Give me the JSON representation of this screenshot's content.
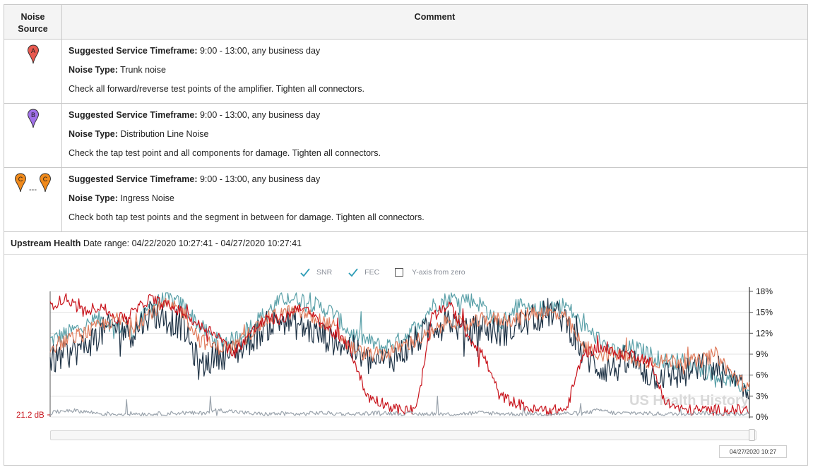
{
  "table": {
    "headers": {
      "source": "Noise Source",
      "comment": "Comment"
    },
    "rows": [
      {
        "pins": [
          {
            "letter": "A",
            "color": "#e8594f"
          }
        ],
        "separator": "",
        "timeframe_label": "Suggested Service Timeframe:",
        "timeframe_value": " 9:00 - 13:00, any business day",
        "type_label": "Noise Type:",
        "type_value": " Trunk noise",
        "instruction": "Check all forward/reverse test points of the amplifier. Tighten all connectors."
      },
      {
        "pins": [
          {
            "letter": "B",
            "color": "#a070e8"
          }
        ],
        "separator": "",
        "timeframe_label": "Suggested Service Timeframe:",
        "timeframe_value": " 9:00 - 13:00, any business day",
        "type_label": "Noise Type:",
        "type_value": " Distribution Line Noise",
        "instruction": "Check the tap test point and all components for damage. Tighten all connectors."
      },
      {
        "pins": [
          {
            "letter": "C",
            "color": "#f08a1c"
          },
          {
            "letter": "C",
            "color": "#f08a1c"
          }
        ],
        "separator": "---",
        "timeframe_label": "Suggested Service Timeframe:",
        "timeframe_value": " 9:00 - 13:00, any business day",
        "type_label": "Noise Type:",
        "type_value": " Ingress Noise",
        "instruction": "Check both tap test points and the segment in between for damage. Tighten all connectors."
      }
    ]
  },
  "upstream": {
    "title": "Upstream Health",
    "date_range": " Date range: 04/22/2020 10:27:41 - 04/27/2020 10:27:41",
    "legend": {
      "snr_label": "SNR",
      "fec_label": "FEC",
      "zero_label": "Y-axis from zero",
      "snr_checked": true,
      "fec_checked": true,
      "zero_checked": false,
      "check_color": "#2a9bb5"
    },
    "watermark": "US Health History",
    "left_marker": "21.2 dB",
    "scroll_date": "04/27/2020 10:27"
  },
  "chart_data": {
    "type": "line",
    "title": "",
    "xlabel": "",
    "ylabel": "",
    "x_range": [
      "04/22/2020 10:27:41",
      "04/27/2020 10:27:41"
    ],
    "ylim": [
      0,
      18
    ],
    "y_ticks": [
      "0%",
      "3%",
      "6%",
      "9%",
      "12%",
      "15%",
      "18%"
    ],
    "y_tick_values": [
      0,
      3,
      6,
      9,
      12,
      15,
      18
    ],
    "left_axis_label": "21.2 dB",
    "grid": true,
    "series": [
      {
        "color": "#5aa0a8",
        "level": [
          11,
          12,
          13,
          14,
          13,
          12,
          16,
          17,
          16,
          13,
          11,
          11,
          13,
          15,
          17,
          17,
          16,
          15,
          12,
          11,
          10,
          11,
          13,
          16,
          17,
          17,
          16,
          13,
          16,
          15,
          16,
          16,
          13,
          11,
          9,
          10,
          9,
          8,
          8,
          7,
          6,
          5,
          4
        ],
        "noise": 1.2
      },
      {
        "color": "#1f3346",
        "level": [
          8,
          9,
          10,
          12,
          13,
          12,
          15,
          14,
          13,
          7,
          9,
          9,
          11,
          13,
          14,
          13,
          12,
          11,
          10,
          8,
          8,
          9,
          11,
          13,
          14,
          12,
          13,
          12,
          13,
          14,
          15,
          14,
          9,
          7,
          7,
          8,
          6,
          6,
          6,
          7,
          7,
          5,
          3
        ],
        "noise": 2.2
      },
      {
        "color": "#e07c5c",
        "level": [
          10,
          11,
          12,
          13,
          14,
          13,
          15,
          16,
          15,
          11,
          10,
          10,
          12,
          14,
          15,
          15,
          14,
          13,
          10,
          9,
          9,
          10,
          11,
          12,
          14,
          13,
          14,
          14,
          14,
          15,
          15,
          14,
          10,
          9,
          9,
          8,
          8,
          8,
          8,
          8,
          9,
          6,
          4
        ],
        "noise": 1.1
      },
      {
        "color": "#c8141c",
        "level": [
          16,
          17,
          15,
          16,
          14,
          15,
          17,
          16,
          15,
          13,
          12,
          9,
          12,
          14,
          14,
          16,
          14,
          12,
          10,
          3,
          2,
          1,
          1,
          15,
          16,
          12,
          9,
          3,
          2,
          1,
          1,
          1,
          9,
          10,
          9,
          9,
          8,
          2,
          1,
          1,
          1,
          1,
          1
        ],
        "noise": 0.8
      },
      {
        "color": "#9aa3ac",
        "level": [
          0.5,
          1,
          0.8,
          0.5,
          0.4,
          0.5,
          0.4,
          0.5,
          0.6,
          0.5,
          1,
          0.8,
          0.5,
          0.4,
          0.5,
          0.4,
          0.6,
          0.5,
          0.4,
          0.5,
          0.6,
          0.5,
          0.4,
          0.5,
          0.4,
          0.5,
          0.6,
          0.5,
          0.4,
          0.5,
          0.4,
          0.5,
          0.5,
          1,
          0.5,
          0.6,
          0.5,
          0.4,
          0.5,
          0.6,
          0.5,
          0.4,
          0.5
        ],
        "noise": 0.3
      }
    ]
  }
}
